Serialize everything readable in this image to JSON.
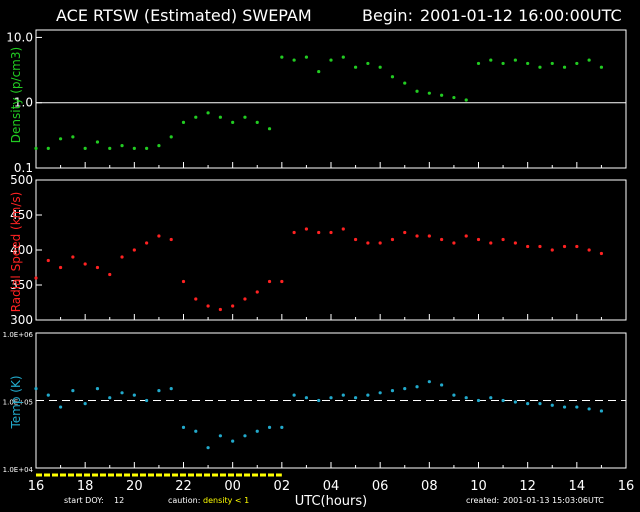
{
  "header": {
    "title": "ACE RTSW (Estimated) SWEPAM",
    "begin_label": "Begin:",
    "begin_value": "2001-01-12 16:00:00UTC"
  },
  "footer": {
    "start_doy_label": "start DOY:",
    "start_doy_value": "12",
    "caution_label": "caution:",
    "caution_value": "density < 1",
    "created_label": "created:",
    "created_value": "2001-01-13 15:03:06UTC"
  },
  "colors": {
    "density": "#22cc22",
    "speed": "#ff2222",
    "temp": "#22aacc",
    "caution": "#ffff00",
    "axes": "#ffffff"
  },
  "chart_data": [
    {
      "type": "scatter",
      "panel": "density",
      "ylabel": "Density (p/cm3)",
      "yscale": "log",
      "ylim": [
        0.1,
        13
      ],
      "yticks": [
        "0.1",
        "1.0",
        "10.0"
      ],
      "reference_line": 1.0,
      "series": [
        {
          "values": [
            [
              16.0,
              0.2
            ],
            [
              16.5,
              0.2
            ],
            [
              17.0,
              0.28
            ],
            [
              17.5,
              0.3
            ],
            [
              18.0,
              0.2
            ],
            [
              18.5,
              0.25
            ],
            [
              19.0,
              0.2
            ],
            [
              19.5,
              0.22
            ],
            [
              20.0,
              0.2
            ],
            [
              20.5,
              0.2
            ],
            [
              21.0,
              0.22
            ],
            [
              21.5,
              0.3
            ],
            [
              22.0,
              0.5
            ],
            [
              22.5,
              0.6
            ],
            [
              23.0,
              0.7
            ],
            [
              23.5,
              0.6
            ],
            [
              24.0,
              0.5
            ],
            [
              24.5,
              0.6
            ],
            [
              25.0,
              0.5
            ],
            [
              25.5,
              0.4
            ],
            [
              26.0,
              5.0
            ],
            [
              26.5,
              4.5
            ],
            [
              27.0,
              5.0
            ],
            [
              27.5,
              3.0
            ],
            [
              28.0,
              4.5
            ],
            [
              28.5,
              5.0
            ],
            [
              29.0,
              3.5
            ],
            [
              29.5,
              4.0
            ],
            [
              30.0,
              3.5
            ],
            [
              30.5,
              2.5
            ],
            [
              31.0,
              2.0
            ],
            [
              31.5,
              1.5
            ],
            [
              32.0,
              1.4
            ],
            [
              32.5,
              1.3
            ],
            [
              33.0,
              1.2
            ],
            [
              33.5,
              1.1
            ],
            [
              34.0,
              4.0
            ],
            [
              34.5,
              4.5
            ],
            [
              35.0,
              4.0
            ],
            [
              35.5,
              4.5
            ],
            [
              36.0,
              4.0
            ],
            [
              36.5,
              3.5
            ],
            [
              37.0,
              4.0
            ],
            [
              37.5,
              3.5
            ],
            [
              38.0,
              4.0
            ],
            [
              38.5,
              4.5
            ],
            [
              39.0,
              3.5
            ]
          ]
        }
      ]
    },
    {
      "type": "scatter",
      "panel": "speed",
      "ylabel": "Radial Speed (km/s)",
      "ylim": [
        300,
        500
      ],
      "yticks": [
        "300",
        "350",
        "400",
        "450",
        "500"
      ],
      "series": [
        {
          "values": [
            [
              16.0,
              360
            ],
            [
              16.5,
              385
            ],
            [
              17.0,
              375
            ],
            [
              17.5,
              390
            ],
            [
              18.0,
              380
            ],
            [
              18.5,
              375
            ],
            [
              19.0,
              365
            ],
            [
              19.5,
              390
            ],
            [
              20.0,
              400
            ],
            [
              20.5,
              410
            ],
            [
              21.0,
              420
            ],
            [
              21.5,
              415
            ],
            [
              22.0,
              355
            ],
            [
              22.5,
              330
            ],
            [
              23.0,
              320
            ],
            [
              23.5,
              315
            ],
            [
              24.0,
              320
            ],
            [
              24.5,
              330
            ],
            [
              25.0,
              340
            ],
            [
              25.5,
              355
            ],
            [
              26.0,
              355
            ],
            [
              26.5,
              425
            ],
            [
              27.0,
              430
            ],
            [
              27.5,
              425
            ],
            [
              28.0,
              425
            ],
            [
              28.5,
              430
            ],
            [
              29.0,
              415
            ],
            [
              29.5,
              410
            ],
            [
              30.0,
              410
            ],
            [
              30.5,
              415
            ],
            [
              31.0,
              425
            ],
            [
              31.5,
              420
            ],
            [
              32.0,
              420
            ],
            [
              32.5,
              415
            ],
            [
              33.0,
              410
            ],
            [
              33.5,
              420
            ],
            [
              34.0,
              415
            ],
            [
              34.5,
              410
            ],
            [
              35.0,
              415
            ],
            [
              35.5,
              410
            ],
            [
              36.0,
              405
            ],
            [
              36.5,
              405
            ],
            [
              37.0,
              400
            ],
            [
              37.5,
              405
            ],
            [
              38.0,
              405
            ],
            [
              38.5,
              400
            ],
            [
              39.0,
              395
            ]
          ]
        }
      ]
    },
    {
      "type": "scatter",
      "panel": "temp",
      "ylabel": "Temp (K)",
      "yscale": "log",
      "ylim": [
        10000,
        1000000
      ],
      "yticks": [
        "1.0E+04",
        "1.0E+05",
        "1.0E+06"
      ],
      "reference_line": 100000,
      "series": [
        {
          "values": [
            [
              16.0,
              150000
            ],
            [
              16.5,
              120000
            ],
            [
              17.0,
              80000
            ],
            [
              17.5,
              140000
            ],
            [
              18.0,
              90000
            ],
            [
              18.5,
              150000
            ],
            [
              19.0,
              110000
            ],
            [
              19.5,
              130000
            ],
            [
              20.0,
              120000
            ],
            [
              20.5,
              100000
            ],
            [
              21.0,
              140000
            ],
            [
              21.5,
              150000
            ],
            [
              22.0,
              40000
            ],
            [
              22.5,
              35000
            ],
            [
              23.0,
              20000
            ],
            [
              23.5,
              30000
            ],
            [
              24.0,
              25000
            ],
            [
              24.5,
              30000
            ],
            [
              25.0,
              35000
            ],
            [
              25.5,
              40000
            ],
            [
              26.0,
              40000
            ],
            [
              26.5,
              120000
            ],
            [
              27.0,
              110000
            ],
            [
              27.5,
              100000
            ],
            [
              28.0,
              110000
            ],
            [
              28.5,
              120000
            ],
            [
              29.0,
              110000
            ],
            [
              29.5,
              120000
            ],
            [
              30.0,
              130000
            ],
            [
              30.5,
              140000
            ],
            [
              31.0,
              150000
            ],
            [
              31.5,
              160000
            ],
            [
              32.0,
              190000
            ],
            [
              32.5,
              170000
            ],
            [
              33.0,
              120000
            ],
            [
              33.5,
              110000
            ],
            [
              34.0,
              100000
            ],
            [
              34.5,
              110000
            ],
            [
              35.0,
              100000
            ],
            [
              35.5,
              95000
            ],
            [
              36.0,
              90000
            ],
            [
              36.5,
              90000
            ],
            [
              37.0,
              85000
            ],
            [
              37.5,
              80000
            ],
            [
              38.0,
              80000
            ],
            [
              38.5,
              75000
            ],
            [
              39.0,
              70000
            ]
          ]
        }
      ]
    }
  ],
  "xaxis": {
    "label": "UTC(hours)",
    "xlim": [
      16,
      40
    ],
    "tick_labels": [
      "16",
      "18",
      "20",
      "22",
      "00",
      "02",
      "04",
      "06",
      "08",
      "10",
      "12",
      "14",
      "16"
    ]
  },
  "caution_segments": [
    [
      16.0,
      26.0
    ]
  ]
}
